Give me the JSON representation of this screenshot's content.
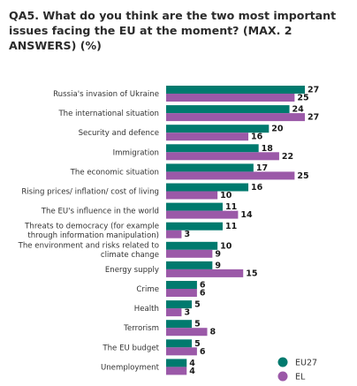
{
  "chart_data": {
    "type": "bar",
    "orientation": "horizontal",
    "title": "QA5. What do you think are the two most important issues facing the EU at the moment? (MAX. 2 ANSWERS) (%)",
    "xlabel": "",
    "ylabel": "",
    "xlim": [
      0,
      27
    ],
    "grid": false,
    "legend_position": "bottom-right",
    "categories": [
      "Russia's invasion of Ukraine",
      "The international situation",
      "Security and defence",
      "Immigration",
      "The economic situation",
      "Rising prices/ inflation/ cost of living",
      "The EU's influence in the world",
      "Threats to democracy (for example through information manipulation)",
      "The environment and risks related to climate change",
      "Energy supply",
      "Crime",
      "Health",
      "Terrorism",
      "The EU budget",
      "Unemployment"
    ],
    "category_lines": [
      [
        "Russia's invasion of Ukraine"
      ],
      [
        "The international situation"
      ],
      [
        "Security and defence"
      ],
      [
        "Immigration"
      ],
      [
        "The economic situation"
      ],
      [
        "Rising prices/ inflation/ cost of living"
      ],
      [
        "The EU's influence in the world"
      ],
      [
        "Threats to democracy (for example",
        "through information manipulation)"
      ],
      [
        "The environment and risks related to",
        "climate change"
      ],
      [
        "Energy supply"
      ],
      [
        "Crime"
      ],
      [
        "Health"
      ],
      [
        "Terrorism"
      ],
      [
        "The EU budget"
      ],
      [
        "Unemployment"
      ]
    ],
    "series": [
      {
        "name": "EU27",
        "color": "#007a6e",
        "values": [
          27,
          24,
          20,
          18,
          17,
          16,
          11,
          11,
          10,
          9,
          6,
          5,
          5,
          5,
          4
        ]
      },
      {
        "name": "EL",
        "color": "#9b59a8",
        "values": [
          25,
          27,
          16,
          22,
          25,
          10,
          14,
          3,
          9,
          15,
          6,
          3,
          8,
          6,
          4
        ]
      }
    ]
  }
}
